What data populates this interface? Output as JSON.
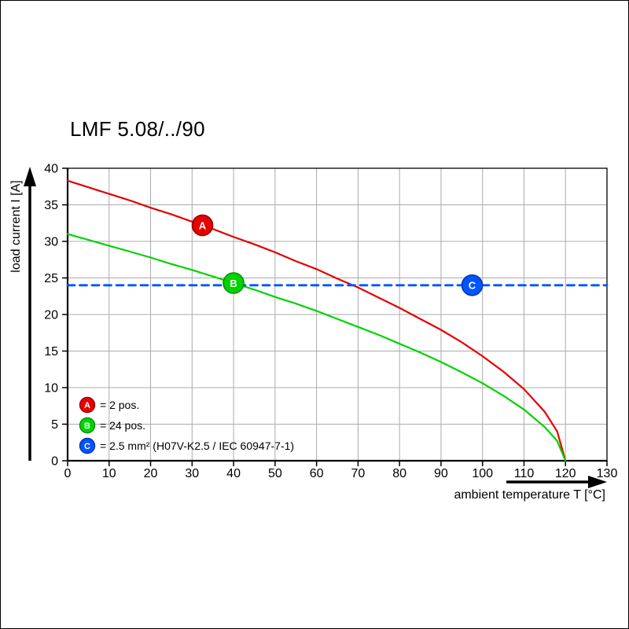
{
  "title": "LMF 5.08/../90",
  "chart_data": {
    "type": "line",
    "title": "LMF 5.08/../90",
    "xlabel": "ambient temperature T [°C]",
    "ylabel": "load current I [A]",
    "xlim": [
      0,
      130
    ],
    "ylim": [
      0,
      40
    ],
    "xticks": [
      0,
      10,
      20,
      30,
      40,
      50,
      60,
      70,
      80,
      90,
      100,
      110,
      120,
      130
    ],
    "yticks": [
      0,
      5,
      10,
      15,
      20,
      25,
      30,
      35,
      40
    ],
    "grid": true,
    "legend_position": "lower-left-inside",
    "colors": {
      "grid": "#ababab",
      "axis": "#000000",
      "background": "#ffffff"
    },
    "series": [
      {
        "name": "A",
        "legend": "= 2 pos.",
        "color": "#e60000",
        "edge": "#990000",
        "letter_color": "#ffffff",
        "dash": false,
        "marker": {
          "x": 32.5,
          "y": 32.2
        },
        "points": [
          [
            0,
            38.3
          ],
          [
            5,
            37.4
          ],
          [
            10,
            36.5
          ],
          [
            15,
            35.6
          ],
          [
            20,
            34.6
          ],
          [
            25,
            33.7
          ],
          [
            30,
            32.7
          ],
          [
            35,
            31.7
          ],
          [
            40,
            30.6
          ],
          [
            45,
            29.6
          ],
          [
            50,
            28.5
          ],
          [
            55,
            27.3
          ],
          [
            60,
            26.2
          ],
          [
            65,
            24.9
          ],
          [
            70,
            23.7
          ],
          [
            75,
            22.3
          ],
          [
            80,
            20.9
          ],
          [
            85,
            19.4
          ],
          [
            90,
            17.9
          ],
          [
            95,
            16.2
          ],
          [
            100,
            14.3
          ],
          [
            105,
            12.2
          ],
          [
            110,
            9.8
          ],
          [
            115,
            6.7
          ],
          [
            118,
            4.0
          ],
          [
            120,
            0
          ]
        ]
      },
      {
        "name": "B",
        "legend": "= 24 pos.",
        "color": "#00d300",
        "edge": "#009000",
        "letter_color": "#ffffff",
        "dash": false,
        "marker": {
          "x": 40,
          "y": 24.3
        },
        "points": [
          [
            0,
            31.0
          ],
          [
            5,
            30.2
          ],
          [
            10,
            29.4
          ],
          [
            15,
            28.6
          ],
          [
            20,
            27.8
          ],
          [
            25,
            26.9
          ],
          [
            30,
            26.1
          ],
          [
            35,
            25.2
          ],
          [
            40,
            24.3
          ],
          [
            45,
            23.4
          ],
          [
            50,
            22.4
          ],
          [
            55,
            21.5
          ],
          [
            60,
            20.5
          ],
          [
            65,
            19.4
          ],
          [
            70,
            18.3
          ],
          [
            75,
            17.2
          ],
          [
            80,
            16.0
          ],
          [
            85,
            14.8
          ],
          [
            90,
            13.5
          ],
          [
            95,
            12.1
          ],
          [
            100,
            10.6
          ],
          [
            105,
            8.9
          ],
          [
            110,
            7.0
          ],
          [
            115,
            4.6
          ],
          [
            118,
            2.7
          ],
          [
            120,
            0
          ]
        ]
      },
      {
        "name": "C",
        "legend": "= 2.5 mm² (H07V-K2.5 / IEC 60947-7-1)",
        "color": "#0055ff",
        "edge": "#0033b3",
        "letter_color": "#ffffff",
        "dash": true,
        "marker": {
          "x": 97.5,
          "y": 24
        },
        "points": [
          [
            0,
            24
          ],
          [
            130,
            24
          ]
        ]
      }
    ]
  }
}
